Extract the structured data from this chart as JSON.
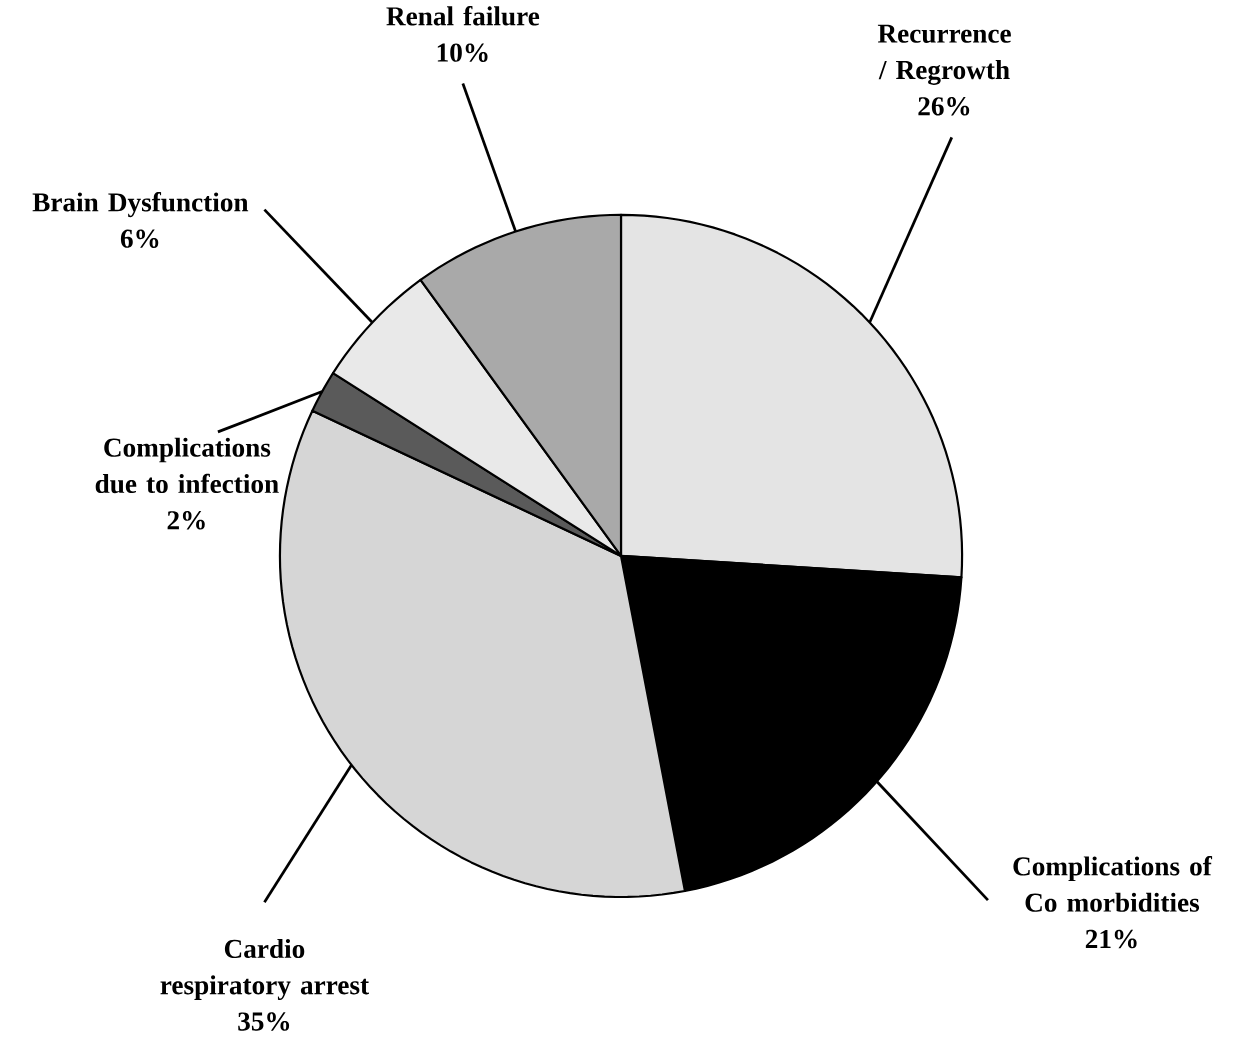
{
  "chart_data": {
    "type": "pie",
    "categories": [
      "Recurrence / Regrowth",
      "Complications of Co morbidities",
      "Cardio respiratory arrest",
      "Complications due to infection",
      "Brain Dysfunction",
      "Renal failure"
    ],
    "values": [
      26,
      21,
      35,
      2,
      6,
      10
    ],
    "value_labels": [
      "26%",
      "21%",
      "35%",
      "2%",
      "6%",
      "10%"
    ],
    "colors": [
      "#e4e4e4",
      "#000000",
      "#d6d6d6",
      "#5a5a5a",
      "#e9e9e9",
      "#a9a9a9"
    ]
  }
}
